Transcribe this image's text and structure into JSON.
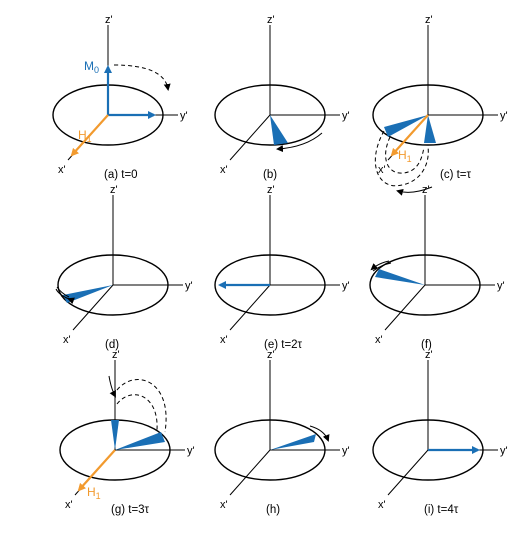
{
  "colors": {
    "magnetization": "#1a6fb5",
    "rf_field": "#f29a2e",
    "axis": "#000000"
  },
  "axes": {
    "z": "z'",
    "y": "y'",
    "x": "x'"
  },
  "vectors": {
    "m0": "M",
    "m0_sub": "0",
    "h1": "H",
    "h1_sub": "1"
  },
  "panels": [
    {
      "caption": "(a) t=0"
    },
    {
      "caption": "(b)"
    },
    {
      "caption": "(c) t=τ"
    },
    {
      "caption": "(d)"
    },
    {
      "caption": "(e) t=2τ"
    },
    {
      "caption": "(f)"
    },
    {
      "caption": "(g) t=3τ"
    },
    {
      "caption": "(h)"
    },
    {
      "caption": "(i) t=4τ"
    }
  ]
}
